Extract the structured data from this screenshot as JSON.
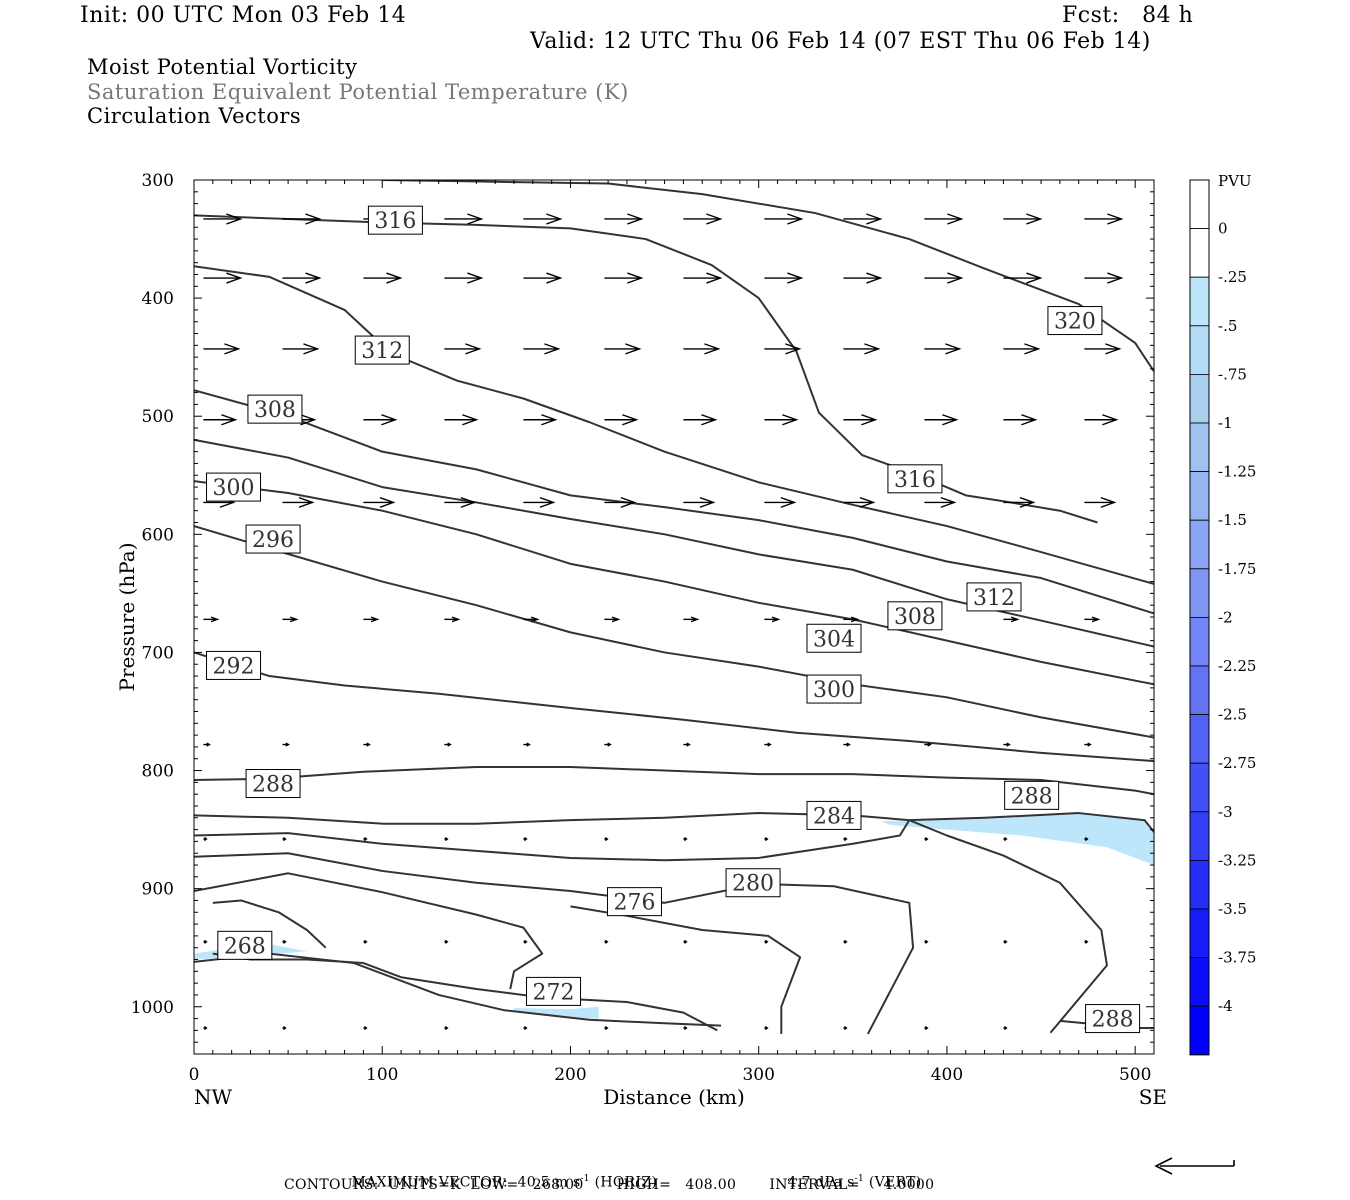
{
  "header": {
    "init": "Init: 00 UTC Mon 03 Feb 14",
    "fcst": "Fcst:   84 h",
    "valid": "Valid: 12 UTC Thu 06 Feb 14 (07 EST Thu 06 Feb 14)",
    "line1": "Moist Potential Vorticity",
    "line2": "Saturation Equivalent Potential Temperature (K)",
    "line3": "Circulation Vectors"
  },
  "footer": {
    "max_vector_label": "MAXIMUM VECTOR:",
    "horiz": "40.5 m s",
    "horiz_unit": "(HORIZ)",
    "vert": "4.7 dPa s",
    "vert_unit": "(VERT)",
    "exp": "-1",
    "contours": "CONTOURS:  UNITS=K  LOW=   268.00       HIGH=   408.00       INTERVAL=     4.0000"
  },
  "colors": {
    "contour": "#333333",
    "vector": "#000000",
    "fill_light": "#bde6fa"
  },
  "chart_data": {
    "type": "cross-section",
    "xlabel": "Distance (km)",
    "ylabel": "Pressure (hPa)",
    "xlim": [
      0,
      510
    ],
    "ylim": [
      300,
      1040
    ],
    "x_ticks": [
      0,
      100,
      200,
      300,
      400,
      500
    ],
    "y_ticks": [
      300,
      400,
      500,
      600,
      700,
      800,
      900,
      1000
    ],
    "left_end": "NW",
    "right_end": "SE",
    "colorbar": {
      "title": "PVU",
      "levels": [
        "0",
        "-.25",
        "-.5",
        "-.75",
        "-1",
        "-1.25",
        "-1.5",
        "-1.75",
        "-2",
        "-2.25",
        "-2.5",
        "-2.75",
        "-3",
        "-3.25",
        "-3.5",
        "-3.75",
        "-4"
      ],
      "colors": [
        "#ffffff",
        "#ffffff",
        "#bde6fa",
        "#b3dcf8",
        "#aacfef",
        "#a0c2f0",
        "#96b5f0",
        "#8ca5f2",
        "#8196f2",
        "#7285f2",
        "#6373f3",
        "#5362f4",
        "#4350f5",
        "#3440f7",
        "#252ef8",
        "#161df9",
        "#0a0cfb",
        "#0000ff"
      ]
    },
    "pv_fill_regions": [
      [
        [
          365,
          843
        ],
        [
          420,
          840
        ],
        [
          470,
          836
        ],
        [
          505,
          842
        ],
        [
          510,
          852
        ],
        [
          510,
          880
        ],
        [
          485,
          865
        ],
        [
          440,
          855
        ],
        [
          400,
          850
        ],
        [
          370,
          846
        ]
      ],
      [
        [
          0,
          955
        ],
        [
          20,
          950
        ],
        [
          40,
          947
        ],
        [
          60,
          953
        ],
        [
          40,
          956
        ],
        [
          0,
          960
        ]
      ],
      [
        [
          170,
          1001
        ],
        [
          200,
          1002
        ],
        [
          215,
          1000
        ],
        [
          215,
          1010
        ],
        [
          190,
          1008
        ],
        [
          170,
          1003
        ]
      ]
    ],
    "theta_e_contours": [
      {
        "label": "268",
        "points": [
          [
            0,
            962
          ],
          [
            40,
            955
          ],
          [
            85,
            963
          ],
          [
            130,
            990
          ],
          [
            165,
            1003
          ],
          [
            210,
            1011
          ],
          [
            250,
            1014
          ],
          [
            280,
            1016
          ]
        ]
      },
      {
        "label": "272",
        "points": [
          [
            10,
            955
          ],
          [
            30,
            960
          ],
          [
            60,
            960
          ],
          [
            90,
            963
          ],
          [
            110,
            975
          ],
          [
            150,
            985
          ],
          [
            175,
            990
          ],
          [
            195,
            993
          ],
          [
            230,
            996
          ],
          [
            260,
            1005
          ],
          [
            278,
            1020
          ]
        ]
      },
      {
        "label": "272",
        "points": [
          [
            10,
            912
          ],
          [
            25,
            910
          ],
          [
            45,
            920
          ],
          [
            60,
            935
          ],
          [
            70,
            950
          ]
        ]
      },
      {
        "label": "276",
        "points": [
          [
            0,
            902
          ],
          [
            50,
            887
          ],
          [
            100,
            903
          ],
          [
            150,
            922
          ],
          [
            175,
            933
          ],
          [
            185,
            955
          ],
          [
            170,
            970
          ],
          [
            168,
            985
          ]
        ]
      },
      {
        "label": "276",
        "points": [
          [
            200,
            915
          ],
          [
            230,
            923
          ],
          [
            270,
            935
          ],
          [
            305,
            940
          ],
          [
            322,
            958
          ],
          [
            312,
            1000
          ],
          [
            312,
            1023
          ]
        ]
      },
      {
        "label": "280",
        "points": [
          [
            0,
            873
          ],
          [
            50,
            870
          ],
          [
            100,
            885
          ],
          [
            150,
            895
          ],
          [
            200,
            902
          ],
          [
            250,
            912
          ],
          [
            300,
            896
          ],
          [
            340,
            898
          ],
          [
            380,
            912
          ],
          [
            382,
            950
          ],
          [
            358,
            1023
          ]
        ]
      },
      {
        "label": "284",
        "points": [
          [
            0,
            855
          ],
          [
            50,
            853
          ],
          [
            100,
            862
          ],
          [
            150,
            868
          ],
          [
            200,
            874
          ],
          [
            250,
            876
          ],
          [
            300,
            874
          ],
          [
            350,
            862
          ],
          [
            375,
            855
          ],
          [
            380,
            842
          ]
        ]
      },
      {
        "label": "284",
        "points": [
          [
            380,
            842
          ],
          [
            400,
            855
          ],
          [
            430,
            872
          ],
          [
            460,
            895
          ],
          [
            482,
            935
          ],
          [
            485,
            965
          ],
          [
            455,
            1022
          ]
        ]
      },
      {
        "label": "288",
        "points": [
          [
            0,
            838
          ],
          [
            50,
            840
          ],
          [
            100,
            845
          ],
          [
            150,
            845
          ],
          [
            200,
            842
          ],
          [
            250,
            840
          ],
          [
            300,
            836
          ],
          [
            350,
            838
          ],
          [
            380,
            842
          ],
          [
            420,
            840
          ],
          [
            470,
            836
          ],
          [
            505,
            842
          ],
          [
            510,
            852
          ]
        ]
      },
      {
        "label": "288",
        "points": [
          [
            0,
            808
          ],
          [
            40,
            807
          ],
          [
            90,
            801
          ],
          [
            150,
            797
          ],
          [
            200,
            797
          ],
          [
            250,
            800
          ],
          [
            300,
            803
          ],
          [
            350,
            803
          ],
          [
            400,
            806
          ],
          [
            450,
            808
          ],
          [
            500,
            817
          ],
          [
            510,
            820
          ]
        ]
      },
      {
        "label": "288",
        "points": [
          [
            460,
            1012
          ],
          [
            500,
            1018
          ],
          [
            510,
            1018
          ]
        ]
      },
      {
        "label": "292",
        "points": [
          [
            0,
            700
          ],
          [
            40,
            720
          ],
          [
            80,
            728
          ],
          [
            130,
            735
          ],
          [
            200,
            747
          ],
          [
            260,
            757
          ],
          [
            320,
            768
          ],
          [
            380,
            775
          ],
          [
            450,
            785
          ],
          [
            510,
            792
          ]
        ]
      },
      {
        "label": "296",
        "points": [
          [
            0,
            593
          ],
          [
            40,
            612
          ],
          [
            100,
            640
          ],
          [
            150,
            660
          ],
          [
            200,
            683
          ],
          [
            250,
            700
          ],
          [
            300,
            712
          ],
          [
            350,
            727
          ],
          [
            400,
            738
          ],
          [
            450,
            755
          ],
          [
            510,
            772
          ]
        ]
      },
      {
        "label": "300",
        "points": [
          [
            0,
            555
          ],
          [
            50,
            565
          ],
          [
            100,
            580
          ],
          [
            150,
            600
          ],
          [
            200,
            625
          ],
          [
            250,
            640
          ],
          [
            300,
            658
          ],
          [
            350,
            672
          ],
          [
            400,
            690
          ],
          [
            450,
            708
          ],
          [
            510,
            727
          ]
        ]
      },
      {
        "label": "304",
        "points": [
          [
            0,
            520
          ],
          [
            50,
            535
          ],
          [
            100,
            560
          ],
          [
            150,
            573
          ],
          [
            200,
            587
          ],
          [
            250,
            600
          ],
          [
            300,
            617
          ],
          [
            350,
            630
          ],
          [
            400,
            655
          ],
          [
            450,
            673
          ],
          [
            510,
            695
          ]
        ]
      },
      {
        "label": "308",
        "points": [
          [
            0,
            478
          ],
          [
            50,
            500
          ],
          [
            100,
            530
          ],
          [
            150,
            545
          ],
          [
            200,
            567
          ],
          [
            250,
            577
          ],
          [
            300,
            588
          ],
          [
            350,
            603
          ],
          [
            400,
            623
          ],
          [
            450,
            637
          ],
          [
            510,
            667
          ]
        ]
      },
      {
        "label": "312",
        "points": [
          [
            0,
            373
          ],
          [
            40,
            382
          ],
          [
            80,
            410
          ],
          [
            105,
            447
          ],
          [
            140,
            470
          ],
          [
            175,
            485
          ],
          [
            210,
            505
          ],
          [
            250,
            530
          ],
          [
            300,
            556
          ],
          [
            350,
            575
          ],
          [
            400,
            593
          ],
          [
            450,
            615
          ],
          [
            510,
            642
          ]
        ]
      },
      {
        "label": "316",
        "points": [
          [
            0,
            330
          ],
          [
            50,
            333
          ],
          [
            100,
            336
          ],
          [
            150,
            338
          ],
          [
            200,
            341
          ],
          [
            240,
            350
          ],
          [
            275,
            372
          ],
          [
            300,
            400
          ],
          [
            320,
            445
          ],
          [
            332,
            497
          ],
          [
            355,
            533
          ],
          [
            385,
            550
          ],
          [
            410,
            567
          ],
          [
            430,
            572
          ],
          [
            460,
            580
          ],
          [
            480,
            590
          ]
        ]
      },
      {
        "label": "320",
        "points": [
          [
            100,
            300
          ],
          [
            140,
            301
          ],
          [
            220,
            303
          ],
          [
            270,
            312
          ],
          [
            330,
            328
          ],
          [
            380,
            350
          ],
          [
            420,
            375
          ],
          [
            470,
            405
          ],
          [
            500,
            438
          ],
          [
            510,
            462
          ]
        ]
      }
    ],
    "contour_labels": [
      {
        "text": "316",
        "x": 107,
        "y": 334
      },
      {
        "text": "312",
        "x": 100,
        "y": 444
      },
      {
        "text": "308",
        "x": 43,
        "y": 494
      },
      {
        "text": "300",
        "x": 21,
        "y": 560
      },
      {
        "text": "296",
        "x": 42,
        "y": 604
      },
      {
        "text": "292",
        "x": 21,
        "y": 711
      },
      {
        "text": "288",
        "x": 42,
        "y": 811
      },
      {
        "text": "268",
        "x": 27,
        "y": 948
      },
      {
        "text": "272",
        "x": 191,
        "y": 987
      },
      {
        "text": "276",
        "x": 234,
        "y": 911
      },
      {
        "text": "280",
        "x": 297,
        "y": 895
      },
      {
        "text": "284",
        "x": 340,
        "y": 838
      },
      {
        "text": "288",
        "x": 445,
        "y": 821
      },
      {
        "text": "300",
        "x": 340,
        "y": 731
      },
      {
        "text": "304",
        "x": 340,
        "y": 688
      },
      {
        "text": "308",
        "x": 383,
        "y": 669
      },
      {
        "text": "312",
        "x": 425,
        "y": 653
      },
      {
        "text": "316",
        "x": 383,
        "y": 553
      },
      {
        "text": "320",
        "x": 468,
        "y": 419
      },
      {
        "text": "288",
        "x": 488,
        "y": 1010
      }
    ],
    "vector_rows": [
      {
        "p": 333,
        "len": 37,
        "dp": 0
      },
      {
        "p": 383,
        "len": 37,
        "dp": 0
      },
      {
        "p": 443,
        "len": 35,
        "dp": 0
      },
      {
        "p": 503,
        "len": 32,
        "dp": 0
      },
      {
        "p": 573,
        "len": 30,
        "dp": 0
      },
      {
        "p": 672,
        "len": 14,
        "dp": 0
      },
      {
        "p": 778,
        "len": 6,
        "dp": 0
      },
      {
        "p": 858,
        "len": 3,
        "dp": 0
      },
      {
        "p": 945,
        "len": 3,
        "dp": 0
      },
      {
        "p": 1018,
        "len": 3,
        "dp": 0
      }
    ],
    "vector_x": [
      5,
      47,
      90,
      133,
      175,
      218,
      260,
      303,
      345,
      388,
      430,
      473
    ]
  }
}
